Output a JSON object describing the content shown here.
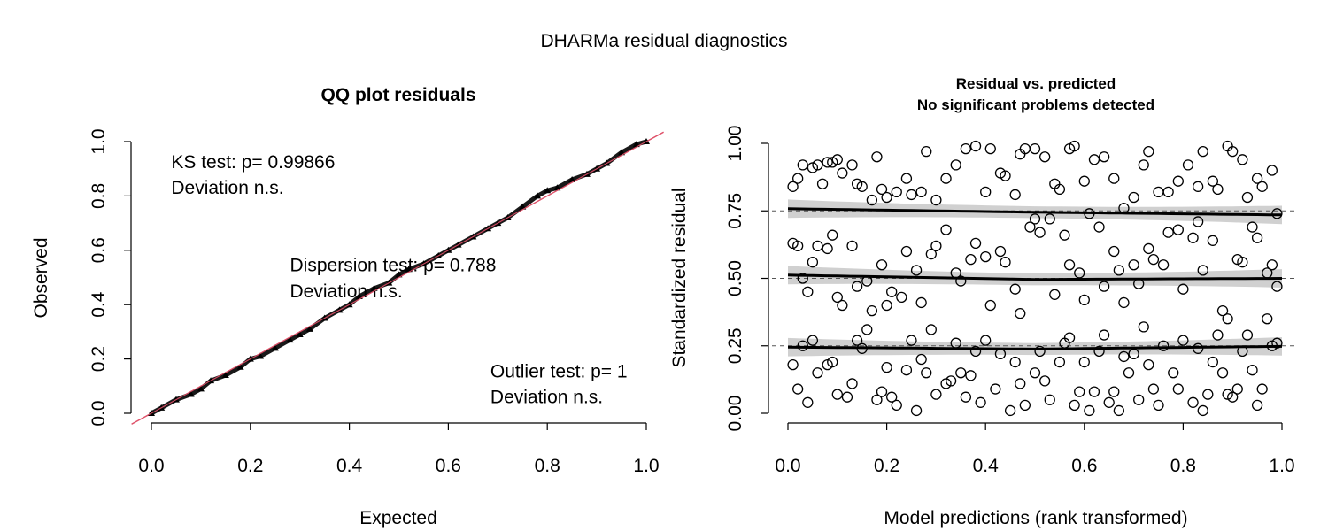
{
  "figure_title": "DHARMa residual diagnostics",
  "chart_data": [
    {
      "type": "scatter",
      "title": "QQ plot residuals",
      "xlabel": "Expected",
      "ylabel": "Observed",
      "xlim": [
        0,
        1
      ],
      "ylim": [
        0,
        1
      ],
      "x_ticks": [
        "0.0",
        "0.2",
        "0.4",
        "0.6",
        "0.8",
        "1.0"
      ],
      "y_ticks": [
        "0.0",
        "0.2",
        "0.4",
        "0.6",
        "0.8",
        "1.0"
      ],
      "reference_line": {
        "slope": 1,
        "intercept": 0,
        "color": "#DF536B"
      },
      "qq_points": [
        [
          0.0,
          0.0
        ],
        [
          0.02,
          0.02
        ],
        [
          0.05,
          0.05
        ],
        [
          0.08,
          0.07
        ],
        [
          0.1,
          0.09
        ],
        [
          0.12,
          0.12
        ],
        [
          0.15,
          0.14
        ],
        [
          0.18,
          0.17
        ],
        [
          0.2,
          0.2
        ],
        [
          0.22,
          0.21
        ],
        [
          0.25,
          0.24
        ],
        [
          0.28,
          0.27
        ],
        [
          0.3,
          0.29
        ],
        [
          0.32,
          0.31
        ],
        [
          0.35,
          0.35
        ],
        [
          0.38,
          0.38
        ],
        [
          0.4,
          0.4
        ],
        [
          0.42,
          0.43
        ],
        [
          0.45,
          0.46
        ],
        [
          0.48,
          0.48
        ],
        [
          0.5,
          0.51
        ],
        [
          0.52,
          0.53
        ],
        [
          0.55,
          0.55
        ],
        [
          0.58,
          0.58
        ],
        [
          0.6,
          0.6
        ],
        [
          0.62,
          0.62
        ],
        [
          0.65,
          0.65
        ],
        [
          0.68,
          0.68
        ],
        [
          0.7,
          0.7
        ],
        [
          0.72,
          0.72
        ],
        [
          0.75,
          0.76
        ],
        [
          0.78,
          0.8
        ],
        [
          0.8,
          0.82
        ],
        [
          0.82,
          0.83
        ],
        [
          0.85,
          0.86
        ],
        [
          0.88,
          0.88
        ],
        [
          0.9,
          0.9
        ],
        [
          0.92,
          0.92
        ],
        [
          0.95,
          0.96
        ],
        [
          0.98,
          0.99
        ],
        [
          1.0,
          1.0
        ]
      ],
      "annotations": [
        {
          "text": "KS test: p= 0.99866",
          "x": 0.04,
          "y": 0.925
        },
        {
          "text": "Deviation  n.s.",
          "x": 0.04,
          "y": 0.83
        },
        {
          "text": "Dispersion test: p= 0.788",
          "x": 0.28,
          "y": 0.545
        },
        {
          "text": "Deviation  n.s.",
          "x": 0.28,
          "y": 0.45
        },
        {
          "text": "Outlier test: p= 1",
          "x": 0.685,
          "y": 0.155
        },
        {
          "text": "Deviation  n.s.",
          "x": 0.685,
          "y": 0.06
        }
      ]
    },
    {
      "type": "scatter",
      "title": "Residual vs. predicted",
      "subtitle": "No significant problems detected",
      "xlabel": "Model predictions (rank transformed)",
      "ylabel": "Standardized residual",
      "xlim": [
        0,
        1
      ],
      "ylim": [
        0,
        1
      ],
      "x_ticks": [
        "0.0",
        "0.2",
        "0.4",
        "0.6",
        "0.8",
        "1.0"
      ],
      "y_ticks": [
        "0.00",
        "0.25",
        "0.50",
        "0.75",
        "1.00"
      ],
      "reference_lines": [
        0.25,
        0.5,
        0.75
      ],
      "quantile_fits": [
        {
          "quantile": 0.25,
          "points": [
            [
              0,
              0.245
            ],
            [
              0.5,
              0.238
            ],
            [
              1,
              0.248
            ]
          ]
        },
        {
          "quantile": 0.5,
          "points": [
            [
              0,
              0.512
            ],
            [
              0.5,
              0.496
            ],
            [
              1,
              0.5
            ]
          ]
        },
        {
          "quantile": 0.75,
          "points": [
            [
              0,
              0.758
            ],
            [
              0.5,
              0.745
            ],
            [
              1,
              0.735
            ]
          ]
        }
      ],
      "points": [
        [
          0.01,
          0.84
        ],
        [
          0.02,
          0.87
        ],
        [
          0.03,
          0.92
        ],
        [
          0.05,
          0.91
        ],
        [
          0.06,
          0.92
        ],
        [
          0.07,
          0.85
        ],
        [
          0.08,
          0.93
        ],
        [
          0.09,
          0.93
        ],
        [
          0.1,
          0.94
        ],
        [
          0.11,
          0.89
        ],
        [
          0.13,
          0.92
        ],
        [
          0.14,
          0.85
        ],
        [
          0.15,
          0.84
        ],
        [
          0.17,
          0.79
        ],
        [
          0.18,
          0.95
        ],
        [
          0.19,
          0.83
        ],
        [
          0.2,
          0.8
        ],
        [
          0.22,
          0.82
        ],
        [
          0.24,
          0.87
        ],
        [
          0.25,
          0.81
        ],
        [
          0.27,
          0.82
        ],
        [
          0.28,
          0.97
        ],
        [
          0.3,
          0.79
        ],
        [
          0.32,
          0.87
        ],
        [
          0.34,
          0.92
        ],
        [
          0.36,
          0.98
        ],
        [
          0.38,
          0.99
        ],
        [
          0.4,
          0.82
        ],
        [
          0.41,
          0.98
        ],
        [
          0.43,
          0.89
        ],
        [
          0.44,
          0.88
        ],
        [
          0.46,
          0.81
        ],
        [
          0.47,
          0.96
        ],
        [
          0.48,
          0.98
        ],
        [
          0.5,
          0.98
        ],
        [
          0.52,
          0.95
        ],
        [
          0.54,
          0.85
        ],
        [
          0.55,
          0.83
        ],
        [
          0.57,
          0.98
        ],
        [
          0.58,
          0.99
        ],
        [
          0.6,
          0.86
        ],
        [
          0.62,
          0.94
        ],
        [
          0.64,
          0.95
        ],
        [
          0.66,
          0.87
        ],
        [
          0.68,
          0.76
        ],
        [
          0.7,
          0.8
        ],
        [
          0.72,
          0.92
        ],
        [
          0.73,
          0.97
        ],
        [
          0.75,
          0.82
        ],
        [
          0.77,
          0.82
        ],
        [
          0.79,
          0.86
        ],
        [
          0.81,
          0.92
        ],
        [
          0.83,
          0.84
        ],
        [
          0.84,
          0.97
        ],
        [
          0.86,
          0.86
        ],
        [
          0.87,
          0.83
        ],
        [
          0.89,
          0.99
        ],
        [
          0.9,
          0.97
        ],
        [
          0.92,
          0.94
        ],
        [
          0.93,
          0.8
        ],
        [
          0.95,
          0.87
        ],
        [
          0.96,
          0.84
        ],
        [
          0.98,
          0.9
        ],
        [
          0.99,
          0.74
        ],
        [
          0.01,
          0.63
        ],
        [
          0.02,
          0.62
        ],
        [
          0.03,
          0.5
        ],
        [
          0.04,
          0.45
        ],
        [
          0.05,
          0.56
        ],
        [
          0.06,
          0.62
        ],
        [
          0.08,
          0.61
        ],
        [
          0.09,
          0.66
        ],
        [
          0.1,
          0.43
        ],
        [
          0.11,
          0.4
        ],
        [
          0.13,
          0.62
        ],
        [
          0.14,
          0.47
        ],
        [
          0.16,
          0.49
        ],
        [
          0.17,
          0.38
        ],
        [
          0.19,
          0.55
        ],
        [
          0.2,
          0.4
        ],
        [
          0.21,
          0.45
        ],
        [
          0.23,
          0.43
        ],
        [
          0.24,
          0.6
        ],
        [
          0.26,
          0.53
        ],
        [
          0.27,
          0.41
        ],
        [
          0.29,
          0.59
        ],
        [
          0.3,
          0.62
        ],
        [
          0.32,
          0.68
        ],
        [
          0.34,
          0.52
        ],
        [
          0.35,
          0.49
        ],
        [
          0.37,
          0.57
        ],
        [
          0.38,
          0.63
        ],
        [
          0.4,
          0.58
        ],
        [
          0.41,
          0.4
        ],
        [
          0.43,
          0.6
        ],
        [
          0.44,
          0.56
        ],
        [
          0.46,
          0.46
        ],
        [
          0.47,
          0.37
        ],
        [
          0.49,
          0.69
        ],
        [
          0.5,
          0.72
        ],
        [
          0.51,
          0.67
        ],
        [
          0.53,
          0.72
        ],
        [
          0.54,
          0.44
        ],
        [
          0.56,
          0.66
        ],
        [
          0.57,
          0.55
        ],
        [
          0.59,
          0.52
        ],
        [
          0.6,
          0.42
        ],
        [
          0.61,
          0.74
        ],
        [
          0.63,
          0.69
        ],
        [
          0.64,
          0.47
        ],
        [
          0.66,
          0.6
        ],
        [
          0.67,
          0.53
        ],
        [
          0.68,
          0.41
        ],
        [
          0.7,
          0.55
        ],
        [
          0.71,
          0.48
        ],
        [
          0.73,
          0.61
        ],
        [
          0.74,
          0.57
        ],
        [
          0.76,
          0.55
        ],
        [
          0.77,
          0.67
        ],
        [
          0.79,
          0.68
        ],
        [
          0.8,
          0.46
        ],
        [
          0.82,
          0.65
        ],
        [
          0.83,
          0.71
        ],
        [
          0.84,
          0.53
        ],
        [
          0.86,
          0.64
        ],
        [
          0.88,
          0.38
        ],
        [
          0.89,
          0.35
        ],
        [
          0.91,
          0.57
        ],
        [
          0.92,
          0.56
        ],
        [
          0.94,
          0.69
        ],
        [
          0.95,
          0.65
        ],
        [
          0.97,
          0.52
        ],
        [
          0.98,
          0.55
        ],
        [
          0.99,
          0.47
        ],
        [
          0.01,
          0.18
        ],
        [
          0.02,
          0.09
        ],
        [
          0.03,
          0.25
        ],
        [
          0.04,
          0.04
        ],
        [
          0.05,
          0.27
        ],
        [
          0.06,
          0.15
        ],
        [
          0.08,
          0.18
        ],
        [
          0.09,
          0.19
        ],
        [
          0.1,
          0.07
        ],
        [
          0.12,
          0.06
        ],
        [
          0.13,
          0.11
        ],
        [
          0.14,
          0.27
        ],
        [
          0.15,
          0.24
        ],
        [
          0.16,
          0.31
        ],
        [
          0.18,
          0.05
        ],
        [
          0.19,
          0.08
        ],
        [
          0.2,
          0.17
        ],
        [
          0.21,
          0.06
        ],
        [
          0.22,
          0.03
        ],
        [
          0.24,
          0.16
        ],
        [
          0.25,
          0.27
        ],
        [
          0.26,
          0.01
        ],
        [
          0.27,
          0.2
        ],
        [
          0.28,
          0.15
        ],
        [
          0.29,
          0.31
        ],
        [
          0.3,
          0.07
        ],
        [
          0.32,
          0.11
        ],
        [
          0.33,
          0.12
        ],
        [
          0.34,
          0.26
        ],
        [
          0.35,
          0.15
        ],
        [
          0.36,
          0.06
        ],
        [
          0.37,
          0.14
        ],
        [
          0.38,
          0.23
        ],
        [
          0.39,
          0.04
        ],
        [
          0.4,
          0.27
        ],
        [
          0.42,
          0.09
        ],
        [
          0.43,
          0.22
        ],
        [
          0.45,
          0.01
        ],
        [
          0.46,
          0.19
        ],
        [
          0.47,
          0.11
        ],
        [
          0.48,
          0.03
        ],
        [
          0.5,
          0.15
        ],
        [
          0.51,
          0.23
        ],
        [
          0.52,
          0.12
        ],
        [
          0.53,
          0.05
        ],
        [
          0.55,
          0.19
        ],
        [
          0.56,
          0.26
        ],
        [
          0.57,
          0.28
        ],
        [
          0.58,
          0.03
        ],
        [
          0.59,
          0.08
        ],
        [
          0.6,
          0.19
        ],
        [
          0.61,
          0.01
        ],
        [
          0.62,
          0.08
        ],
        [
          0.63,
          0.23
        ],
        [
          0.64,
          0.29
        ],
        [
          0.65,
          0.04
        ],
        [
          0.66,
          0.08
        ],
        [
          0.67,
          0.01
        ],
        [
          0.68,
          0.21
        ],
        [
          0.69,
          0.15
        ],
        [
          0.7,
          0.22
        ],
        [
          0.71,
          0.05
        ],
        [
          0.72,
          0.32
        ],
        [
          0.73,
          0.18
        ],
        [
          0.74,
          0.09
        ],
        [
          0.75,
          0.03
        ],
        [
          0.76,
          0.25
        ],
        [
          0.78,
          0.15
        ],
        [
          0.79,
          0.09
        ],
        [
          0.8,
          0.27
        ],
        [
          0.82,
          0.04
        ],
        [
          0.83,
          0.24
        ],
        [
          0.84,
          0.01
        ],
        [
          0.85,
          0.07
        ],
        [
          0.86,
          0.19
        ],
        [
          0.87,
          0.29
        ],
        [
          0.88,
          0.15
        ],
        [
          0.89,
          0.07
        ],
        [
          0.9,
          0.06
        ],
        [
          0.91,
          0.09
        ],
        [
          0.92,
          0.23
        ],
        [
          0.93,
          0.29
        ],
        [
          0.94,
          0.16
        ],
        [
          0.95,
          0.03
        ],
        [
          0.96,
          0.09
        ],
        [
          0.97,
          0.35
        ],
        [
          0.98,
          0.25
        ],
        [
          0.99,
          0.26
        ]
      ]
    }
  ]
}
